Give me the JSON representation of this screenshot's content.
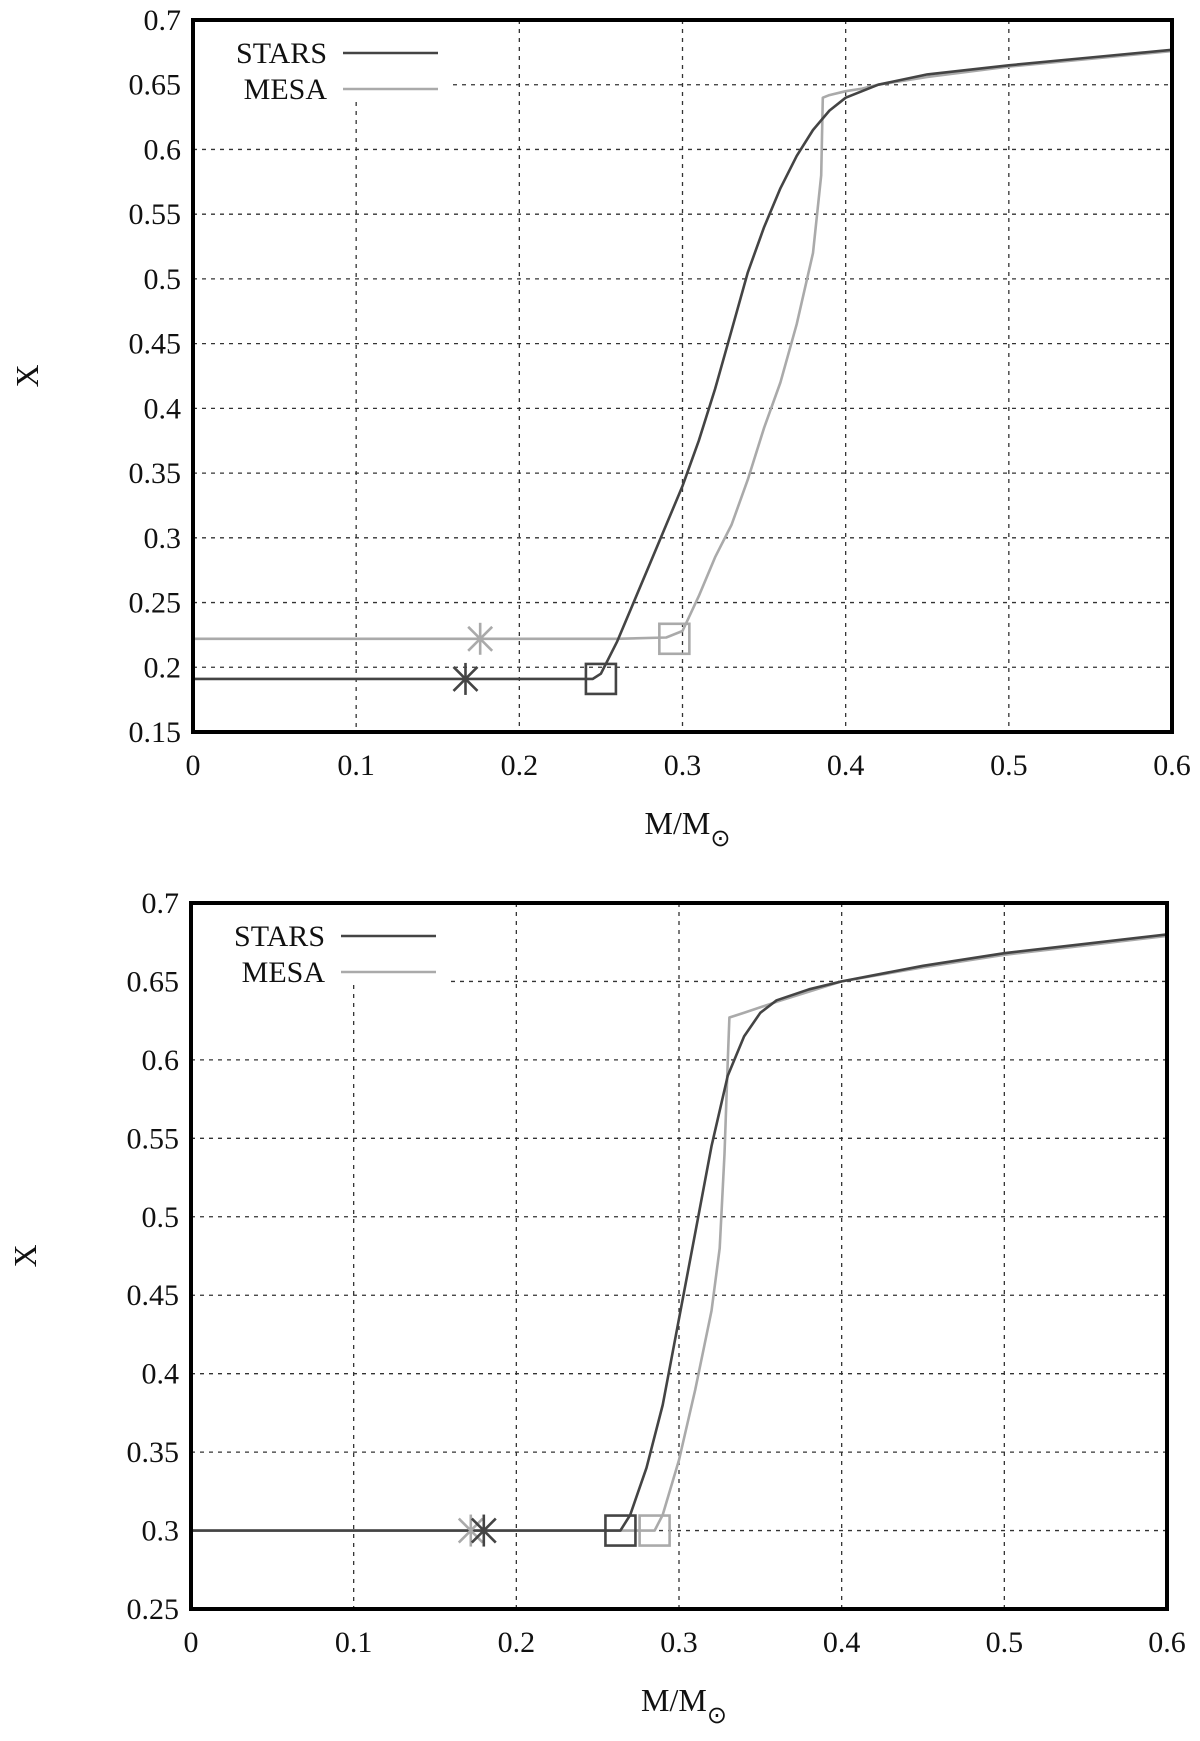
{
  "chart_data": [
    {
      "type": "line",
      "xlabel": "M/M",
      "xlabel_sub": "⊙",
      "ylabel": "X",
      "xlim": [
        0,
        0.6
      ],
      "ylim": [
        0.15,
        0.7
      ],
      "x_ticks": [
        "0",
        "0.1",
        "0.2",
        "0.3",
        "0.4",
        "0.5",
        "0.6"
      ],
      "y_ticks": [
        "0.15",
        "0.2",
        "0.25",
        "0.3",
        "0.35",
        "0.4",
        "0.45",
        "0.5",
        "0.55",
        "0.6",
        "0.65",
        "0.7"
      ],
      "grid": true,
      "legend_position": "top-left",
      "series": [
        {
          "name": "STARS",
          "color": "#444444",
          "points": [
            [
              0,
              0.191
            ],
            [
              0.1,
              0.191
            ],
            [
              0.2,
              0.191
            ],
            [
              0.245,
              0.191
            ],
            [
              0.25,
              0.195
            ],
            [
              0.26,
              0.22
            ],
            [
              0.27,
              0.25
            ],
            [
              0.28,
              0.28
            ],
            [
              0.29,
              0.31
            ],
            [
              0.3,
              0.34
            ],
            [
              0.31,
              0.375
            ],
            [
              0.32,
              0.415
            ],
            [
              0.33,
              0.46
            ],
            [
              0.34,
              0.505
            ],
            [
              0.35,
              0.54
            ],
            [
              0.36,
              0.57
            ],
            [
              0.37,
              0.595
            ],
            [
              0.38,
              0.615
            ],
            [
              0.39,
              0.63
            ],
            [
              0.4,
              0.64
            ],
            [
              0.42,
              0.65
            ],
            [
              0.45,
              0.658
            ],
            [
              0.5,
              0.665
            ],
            [
              0.55,
              0.671
            ],
            [
              0.6,
              0.677
            ]
          ],
          "markers": [
            {
              "shape": "asterisk",
              "x": 0.167,
              "y": 0.191
            },
            {
              "shape": "square",
              "x": 0.25,
              "y": 0.191
            }
          ]
        },
        {
          "name": "MESA",
          "color": "#aaaaaa",
          "points": [
            [
              0,
              0.222
            ],
            [
              0.1,
              0.222
            ],
            [
              0.2,
              0.222
            ],
            [
              0.26,
              0.222
            ],
            [
              0.29,
              0.223
            ],
            [
              0.3,
              0.228
            ],
            [
              0.31,
              0.255
            ],
            [
              0.32,
              0.285
            ],
            [
              0.33,
              0.31
            ],
            [
              0.34,
              0.345
            ],
            [
              0.35,
              0.385
            ],
            [
              0.36,
              0.42
            ],
            [
              0.37,
              0.465
            ],
            [
              0.38,
              0.52
            ],
            [
              0.385,
              0.58
            ],
            [
              0.386,
              0.64
            ],
            [
              0.39,
              0.642
            ],
            [
              0.4,
              0.645
            ],
            [
              0.41,
              0.647
            ],
            [
              0.42,
              0.65
            ],
            [
              0.45,
              0.656
            ],
            [
              0.5,
              0.664
            ],
            [
              0.55,
              0.67
            ],
            [
              0.6,
              0.676
            ]
          ],
          "markers": [
            {
              "shape": "asterisk",
              "x": 0.176,
              "y": 0.222
            },
            {
              "shape": "square",
              "x": 0.295,
              "y": 0.222
            }
          ]
        }
      ]
    },
    {
      "type": "line",
      "xlabel": "M/M",
      "xlabel_sub": "⊙",
      "ylabel": "X",
      "xlim": [
        0,
        0.6
      ],
      "ylim": [
        0.25,
        0.7
      ],
      "x_ticks": [
        "0",
        "0.1",
        "0.2",
        "0.3",
        "0.4",
        "0.5",
        "0.6"
      ],
      "y_ticks": [
        "0.25",
        "0.3",
        "0.35",
        "0.4",
        "0.45",
        "0.5",
        "0.55",
        "0.6",
        "0.65",
        "0.7"
      ],
      "grid": true,
      "legend_position": "top-left",
      "series": [
        {
          "name": "STARS",
          "color": "#444444",
          "points": [
            [
              0,
              0.3
            ],
            [
              0.1,
              0.3
            ],
            [
              0.2,
              0.3
            ],
            [
              0.264,
              0.3
            ],
            [
              0.27,
              0.31
            ],
            [
              0.28,
              0.34
            ],
            [
              0.29,
              0.38
            ],
            [
              0.3,
              0.435
            ],
            [
              0.31,
              0.49
            ],
            [
              0.32,
              0.545
            ],
            [
              0.33,
              0.59
            ],
            [
              0.34,
              0.615
            ],
            [
              0.35,
              0.63
            ],
            [
              0.36,
              0.638
            ],
            [
              0.38,
              0.645
            ],
            [
              0.4,
              0.65
            ],
            [
              0.45,
              0.66
            ],
            [
              0.5,
              0.668
            ],
            [
              0.55,
              0.674
            ],
            [
              0.6,
              0.68
            ]
          ],
          "markers": [
            {
              "shape": "asterisk",
              "x": 0.18,
              "y": 0.3
            },
            {
              "shape": "square",
              "x": 0.264,
              "y": 0.3
            }
          ]
        },
        {
          "name": "MESA",
          "color": "#aaaaaa",
          "points": [
            [
              0,
              0.3
            ],
            [
              0.1,
              0.3
            ],
            [
              0.2,
              0.3
            ],
            [
              0.285,
              0.3
            ],
            [
              0.29,
              0.31
            ],
            [
              0.3,
              0.345
            ],
            [
              0.31,
              0.39
            ],
            [
              0.32,
              0.44
            ],
            [
              0.325,
              0.48
            ],
            [
              0.328,
              0.54
            ],
            [
              0.33,
              0.6
            ],
            [
              0.331,
              0.627
            ],
            [
              0.34,
              0.63
            ],
            [
              0.36,
              0.637
            ],
            [
              0.4,
              0.65
            ],
            [
              0.45,
              0.659
            ],
            [
              0.5,
              0.667
            ],
            [
              0.55,
              0.673
            ],
            [
              0.6,
              0.679
            ]
          ],
          "markers": [
            {
              "shape": "asterisk",
              "x": 0.172,
              "y": 0.3
            },
            {
              "shape": "square",
              "x": 0.285,
              "y": 0.3
            }
          ]
        }
      ]
    }
  ]
}
